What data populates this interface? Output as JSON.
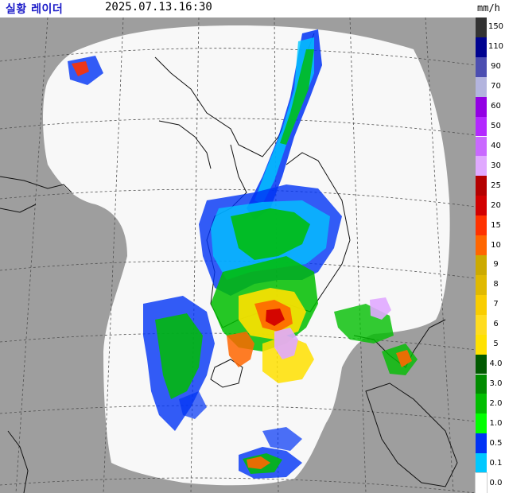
{
  "header": {
    "title": "실황 레이더",
    "timestamp": "2025.07.13.16:30",
    "unit": "mm/h"
  },
  "map": {
    "outside_radar_color": "#9e9e9e",
    "radar_coverage_color": "#f8f8f8",
    "grid_color": "#505050",
    "coastline_color": "#111111"
  },
  "legend": {
    "items": [
      {
        "label": "150",
        "color": "#333333"
      },
      {
        "label": "110",
        "color": "#000390"
      },
      {
        "label": "90",
        "color": "#4c4eb1"
      },
      {
        "label": "70",
        "color": "#b3b4de"
      },
      {
        "label": "60",
        "color": "#9300e4"
      },
      {
        "label": "50",
        "color": "#b329ff"
      },
      {
        "label": "40",
        "color": "#c969ff"
      },
      {
        "label": "30",
        "color": "#e0a9ff"
      },
      {
        "label": "25",
        "color": "#b40000"
      },
      {
        "label": "20",
        "color": "#d20000"
      },
      {
        "label": "15",
        "color": "#ff3200"
      },
      {
        "label": "10",
        "color": "#ff6600"
      },
      {
        "label": "9",
        "color": "#ccaa00"
      },
      {
        "label": "8",
        "color": "#e0b900"
      },
      {
        "label": "7",
        "color": "#f9cd00"
      },
      {
        "label": "6",
        "color": "#ffdc1f"
      },
      {
        "label": "5",
        "color": "#ffe100"
      },
      {
        "label": "4.0",
        "color": "#005a00"
      },
      {
        "label": "3.0",
        "color": "#008c00"
      },
      {
        "label": "2.0",
        "color": "#00be00"
      },
      {
        "label": "1.0",
        "color": "#00ff00"
      },
      {
        "label": "0.5",
        "color": "#0033f5"
      },
      {
        "label": "0.1",
        "color": "#00c8ff"
      },
      {
        "label": "0.0",
        "color": "#ffffff"
      }
    ]
  }
}
